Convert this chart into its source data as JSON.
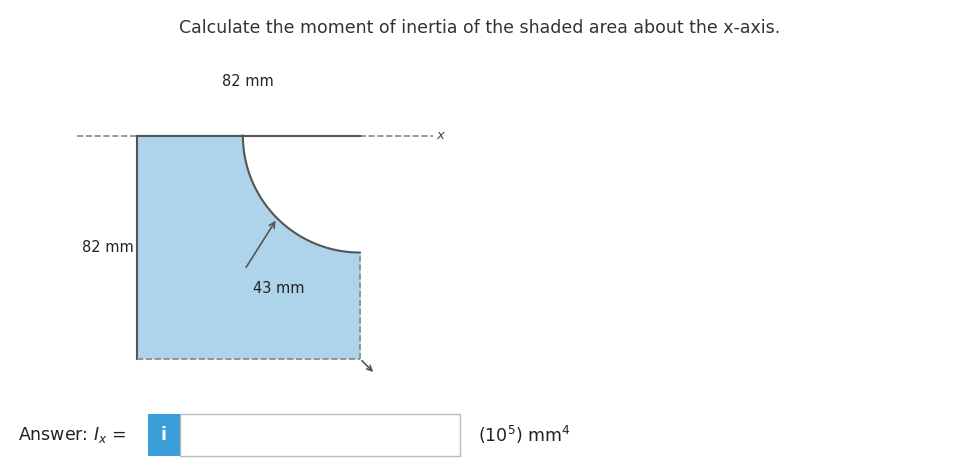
{
  "title": "Calculate the moment of inertia of the shaded area about the x-axis.",
  "title_fontsize": 12.5,
  "title_color": "#333333",
  "bg_color": "#ffffff",
  "shape_fill_color": "#aed4ec",
  "shape_edge_color": "#888888",
  "dim_82_top": "82 mm",
  "dim_82_left": "82 mm",
  "dim_43": "43 mm",
  "answer_box_color": "#3a9fd8",
  "answer_input_border": "#bbbbbb",
  "dashed_color": "#888888",
  "arrow_color": "#555555",
  "label_fontsize": 10.5,
  "answer_fontsize": 12.5,
  "sq": 82,
  "r": 43
}
